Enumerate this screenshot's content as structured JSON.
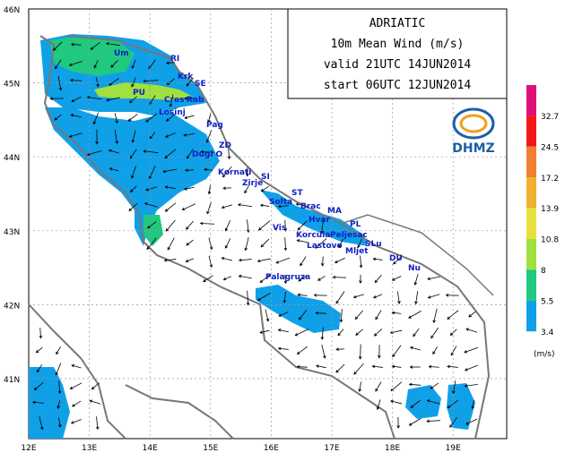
{
  "title_box": {
    "lines": [
      "ADRIATIC",
      "10m  Mean Wind (m/s)",
      "valid 21UTC 14JUN2014",
      "start 06UTC 12JUN2014"
    ]
  },
  "axes": {
    "latitude": [
      "46N",
      "45N",
      "44N",
      "43N",
      "42N",
      "41N"
    ],
    "longitude": [
      "12E",
      "13E",
      "14E",
      "15E",
      "16E",
      "17E",
      "18E",
      "19E"
    ]
  },
  "legend": {
    "labels": [
      "32.7",
      "24.5",
      "17.2",
      "13.9",
      "10.8",
      "8",
      "5.5",
      "3.4"
    ],
    "unit": "(m/s)"
  },
  "logo": "DHMZ",
  "places": [
    "Um",
    "RI",
    "Krk",
    "SE",
    "PU",
    "Cres",
    "Rab",
    "Losinj",
    "Pag",
    "ZD",
    "Dugi O",
    "Kornati",
    "SI",
    "Zirje",
    "ST",
    "Solta",
    "Brac",
    "MA",
    "Hvar",
    "PL",
    "Vis",
    "Korcula",
    "Peljesac",
    "Lastovo",
    "Mljet",
    "SLu",
    "DU",
    "Nu",
    "Palagruza"
  ]
}
